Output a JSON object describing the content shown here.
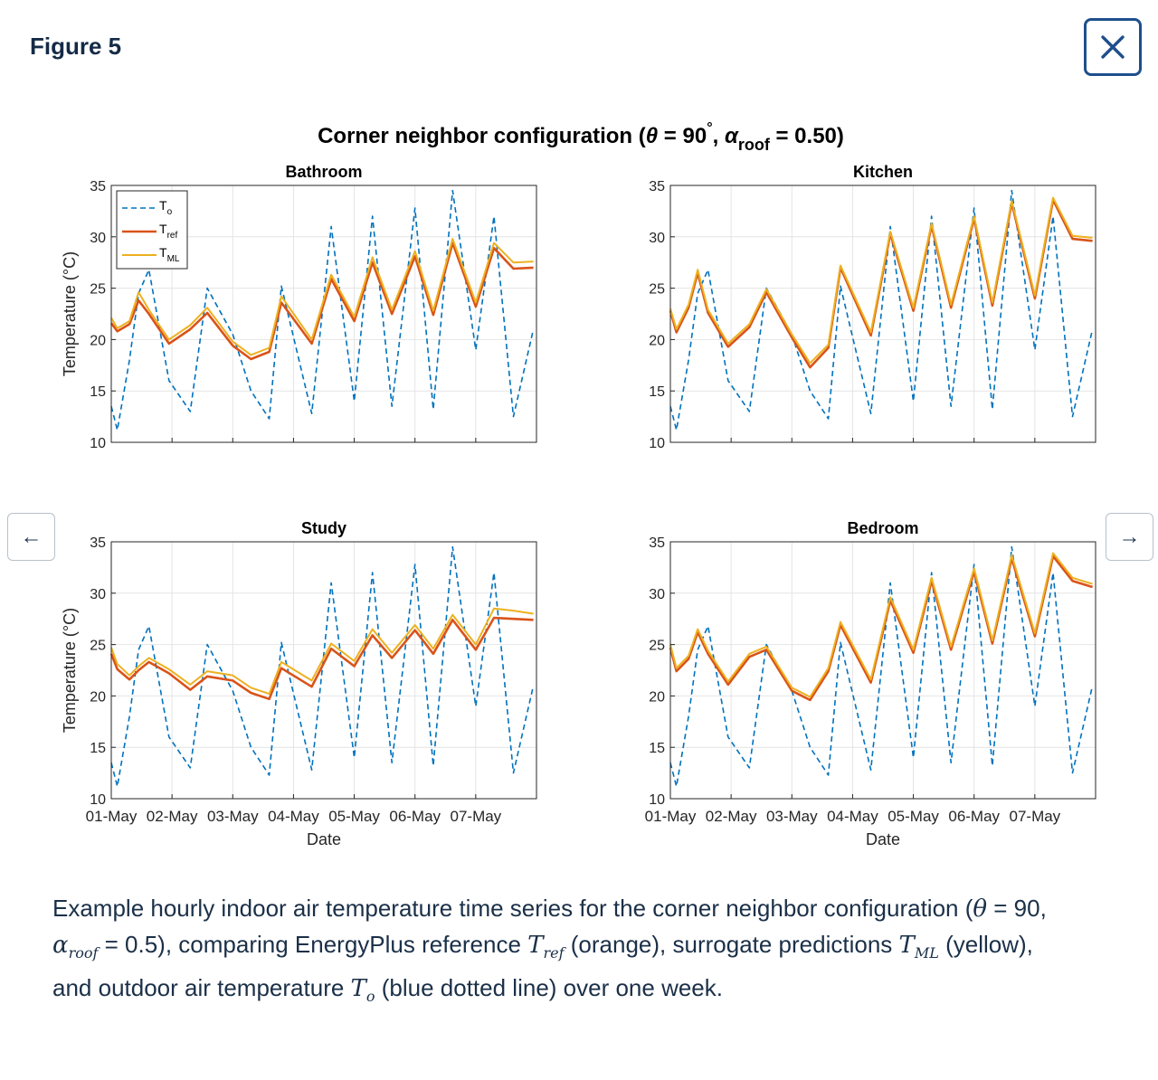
{
  "modal": {
    "title": "Figure 5",
    "close_label": "✕",
    "prev_label": "←",
    "next_label": "→"
  },
  "figure": {
    "suptitle_pre": "Corner neighbor configuration (",
    "suptitle_theta": "θ",
    "suptitle_mid": " = 90",
    "suptitle_deg": "°",
    "suptitle_comma": ", ",
    "suptitle_alpha": "α",
    "suptitle_sub": "roof",
    "suptitle_post": " = 0.50)"
  },
  "legend": [
    {
      "base": "T",
      "sub": "o"
    },
    {
      "base": "T",
      "sub": "ref"
    },
    {
      "base": "T",
      "sub": "ML"
    }
  ],
  "caption": {
    "line1": "Example hourly indoor air temperature time series for the corner neighbor configuration (",
    "theta": "θ",
    "line1b": " = 90,",
    "alpha": "α",
    "alpha_sub": "roof",
    "line2a": " = 0.5), comparing EnergyPlus reference ",
    "tref": "T",
    "tref_sub": "ref",
    "line2b": " (orange), surrogate predictions ",
    "tml": "T",
    "tml_sub": "ML",
    "line2c": " (yellow),",
    "line3a": "and outdoor air temperature ",
    "to": "T",
    "to_sub": "o",
    "line3b": " (blue dotted line) over one week."
  },
  "colors": {
    "outdoor": "#0072BD",
    "reference": "#D95319",
    "ml": "#EDB120",
    "accent": "#1e4f8c"
  },
  "chart_data": [
    {
      "type": "line",
      "title": "Bathroom",
      "xlabel": "",
      "ylabel": "Temperature (°C)",
      "ylim": [
        10,
        35
      ],
      "yticks": [
        10,
        15,
        20,
        25,
        30,
        35
      ],
      "xlim": [
        0,
        7
      ],
      "xtick_labels": [
        "01-May",
        "02-May",
        "03-May",
        "04-May",
        "05-May",
        "06-May",
        "07-May"
      ],
      "grid": true,
      "legend": "top-left",
      "x_days": [
        0,
        0.1,
        0.3,
        0.45,
        0.62,
        0.95,
        1.3,
        1.58,
        2.0,
        2.3,
        2.6,
        2.8,
        3.3,
        3.62,
        4.0,
        4.3,
        4.62,
        5.0,
        5.3,
        5.62,
        6.0,
        6.3,
        6.62,
        6.95
      ],
      "series": [
        {
          "label_index": 0,
          "values": [
            13.5,
            11.2,
            18,
            24.5,
            26.8,
            16,
            13,
            25,
            20.5,
            15,
            12.3,
            25.2,
            12.8,
            31,
            14,
            32,
            13.5,
            32.8,
            13.2,
            34.5,
            19,
            32,
            12.5,
            21
          ]
        },
        {
          "label_index": 1,
          "values": [
            21.6,
            20.8,
            21.5,
            23.8,
            22.5,
            19.6,
            21,
            22.6,
            19.4,
            18.1,
            18.8,
            23.6,
            19.6,
            25.9,
            21.8,
            27.5,
            22.5,
            28.1,
            22.4,
            29.4,
            23.2,
            28.9,
            26.9,
            27
          ]
        },
        {
          "label_index": 2,
          "values": [
            22.1,
            21.1,
            21.8,
            24.6,
            22.9,
            20,
            21.4,
            23.1,
            19.8,
            18.5,
            19.2,
            24.2,
            20,
            26.3,
            22.2,
            28,
            22.9,
            28.6,
            22.8,
            29.8,
            23.6,
            29.4,
            27.5,
            27.6
          ]
        }
      ]
    },
    {
      "type": "line",
      "title": "Kitchen",
      "xlabel": "",
      "ylabel": "",
      "ylim": [
        10,
        35
      ],
      "yticks": [
        10,
        15,
        20,
        25,
        30,
        35
      ],
      "xlim": [
        0,
        7
      ],
      "xtick_labels": [
        "01-May",
        "02-May",
        "03-May",
        "04-May",
        "05-May",
        "06-May",
        "07-May"
      ],
      "grid": true,
      "legend": "none",
      "x_days": [
        0,
        0.1,
        0.3,
        0.45,
        0.62,
        0.95,
        1.3,
        1.58,
        2.0,
        2.3,
        2.6,
        2.8,
        3.3,
        3.62,
        4.0,
        4.3,
        4.62,
        5.0,
        5.3,
        5.62,
        6.0,
        6.3,
        6.62,
        6.95
      ],
      "series": [
        {
          "label_index": 0,
          "values": [
            13.5,
            11.2,
            18,
            24.5,
            26.8,
            16,
            13,
            25,
            20.5,
            15,
            12.3,
            25.2,
            12.8,
            31,
            14,
            32,
            13.5,
            32.8,
            13.2,
            34.5,
            19,
            32,
            12.5,
            21
          ]
        },
        {
          "label_index": 1,
          "values": [
            22.8,
            20.7,
            23.1,
            26.5,
            22.6,
            19.3,
            21.2,
            24.6,
            20.2,
            17.3,
            19.2,
            27,
            20.4,
            30.3,
            22.8,
            31.1,
            23.1,
            31.8,
            23.3,
            33.3,
            24,
            33.6,
            29.8,
            29.6
          ]
        },
        {
          "label_index": 2,
          "values": [
            23,
            21,
            23.4,
            26.8,
            22.9,
            19.6,
            21.5,
            24.9,
            20.5,
            17.7,
            19.5,
            27.2,
            20.7,
            30.5,
            23.1,
            31.3,
            23.4,
            32,
            23.6,
            33.5,
            24.3,
            33.8,
            30.1,
            29.9
          ]
        }
      ]
    },
    {
      "type": "line",
      "title": "Study",
      "xlabel": "Date",
      "ylabel": "Temperature (°C)",
      "ylim": [
        10,
        35
      ],
      "yticks": [
        10,
        15,
        20,
        25,
        30,
        35
      ],
      "xlim": [
        0,
        7
      ],
      "xtick_labels": [
        "01-May",
        "02-May",
        "03-May",
        "04-May",
        "05-May",
        "06-May",
        "07-May"
      ],
      "grid": true,
      "legend": "none",
      "x_days": [
        0,
        0.1,
        0.3,
        0.45,
        0.62,
        0.95,
        1.3,
        1.58,
        2.0,
        2.3,
        2.6,
        2.8,
        3.3,
        3.62,
        4.0,
        4.3,
        4.62,
        5.0,
        5.3,
        5.62,
        6.0,
        6.3,
        6.62,
        6.95
      ],
      "series": [
        {
          "label_index": 0,
          "values": [
            13.5,
            11.2,
            18,
            24.5,
            26.8,
            16,
            13,
            25,
            20.5,
            15,
            12.3,
            25.2,
            12.8,
            31,
            14,
            32,
            13.5,
            32.8,
            13.2,
            34.5,
            19,
            32,
            12.5,
            21
          ]
        },
        {
          "label_index": 1,
          "values": [
            24.1,
            22.6,
            21.6,
            22.5,
            23.3,
            22.2,
            20.6,
            21.9,
            21.5,
            20.3,
            19.7,
            22.7,
            20.9,
            24.6,
            22.9,
            25.9,
            23.7,
            26.4,
            24.1,
            27.4,
            24.5,
            27.6,
            27.5,
            27.4
          ]
        },
        {
          "label_index": 2,
          "values": [
            24.7,
            23.1,
            22,
            22.9,
            23.7,
            22.6,
            21.1,
            22.4,
            22,
            20.8,
            20.2,
            23.3,
            21.5,
            25.1,
            23.4,
            26.5,
            24.2,
            26.9,
            24.6,
            27.9,
            25,
            28.5,
            28.3,
            28
          ]
        }
      ]
    },
    {
      "type": "line",
      "title": "Bedroom",
      "xlabel": "Date",
      "ylabel": "",
      "ylim": [
        10,
        35
      ],
      "yticks": [
        10,
        15,
        20,
        25,
        30,
        35
      ],
      "xlim": [
        0,
        7
      ],
      "xtick_labels": [
        "01-May",
        "02-May",
        "03-May",
        "04-May",
        "05-May",
        "06-May",
        "07-May"
      ],
      "grid": true,
      "legend": "none",
      "x_days": [
        0,
        0.1,
        0.3,
        0.45,
        0.62,
        0.95,
        1.3,
        1.58,
        2.0,
        2.3,
        2.6,
        2.8,
        3.3,
        3.62,
        4.0,
        4.3,
        4.62,
        5.0,
        5.3,
        5.62,
        6.0,
        6.3,
        6.62,
        6.95
      ],
      "series": [
        {
          "label_index": 0,
          "values": [
            13.5,
            11.2,
            18,
            24.5,
            26.8,
            16,
            13,
            25,
            20.5,
            15,
            12.3,
            25.2,
            12.8,
            31,
            14,
            32,
            13.5,
            32.8,
            13.2,
            34.5,
            19,
            32,
            12.5,
            21
          ]
        },
        {
          "label_index": 1,
          "values": [
            24.7,
            22.4,
            23.6,
            26.2,
            24.1,
            21.1,
            23.8,
            24.5,
            20.5,
            19.6,
            22.4,
            26.9,
            21.3,
            29.3,
            24.2,
            31.2,
            24.5,
            32.1,
            25.1,
            33.4,
            25.8,
            33.6,
            31.2,
            30.6
          ]
        },
        {
          "label_index": 2,
          "values": [
            25,
            22.7,
            23.9,
            26.5,
            24.4,
            21.4,
            24.1,
            24.8,
            20.8,
            19.9,
            22.7,
            27.2,
            21.6,
            29.6,
            24.5,
            31.5,
            24.8,
            32.4,
            25.4,
            33.7,
            26.1,
            33.9,
            31.5,
            30.9
          ]
        }
      ]
    }
  ]
}
